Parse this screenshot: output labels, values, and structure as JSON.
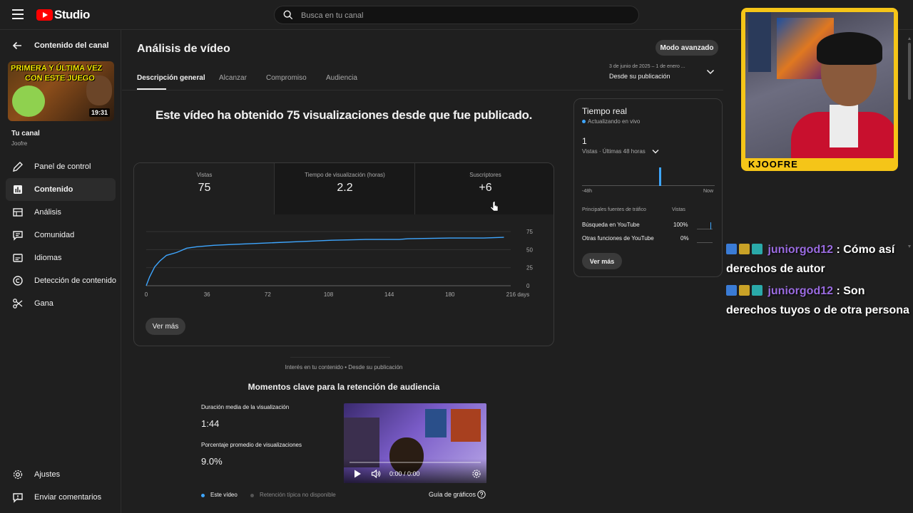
{
  "header": {
    "logo_text": "Studio",
    "search_placeholder": "Busca en tu canal"
  },
  "sidebar": {
    "back_label": "Contenido del canal",
    "thumbnail": {
      "line1": "PRIMERA Y ÚLTIMA VEZ",
      "line2": "CON ESTE JUEGO",
      "duration": "19:31"
    },
    "channel_title": "Tu canal",
    "channel_name": "Joofre",
    "items": [
      {
        "label": "Panel de control",
        "icon": "pencil-icon"
      },
      {
        "label": "Contenido",
        "icon": "content-icon"
      },
      {
        "label": "Análisis",
        "icon": "analytics-icon"
      },
      {
        "label": "Comunidad",
        "icon": "community-icon"
      },
      {
        "label": "Idiomas",
        "icon": "subtitles-icon"
      },
      {
        "label": "Detección de contenido",
        "icon": "copyright-icon"
      },
      {
        "label": "Gana",
        "icon": "scissors-icon"
      }
    ],
    "bottom_items": [
      {
        "label": "Ajustes",
        "icon": "gear-icon"
      },
      {
        "label": "Enviar comentarios",
        "icon": "feedback-icon"
      }
    ]
  },
  "main": {
    "title": "Análisis de vídeo",
    "advanced_button": "Modo avanzado",
    "tabs": [
      {
        "label": "Descripción general",
        "active": true
      },
      {
        "label": "Alcanzar",
        "active": false
      },
      {
        "label": "Compromiso",
        "active": false
      },
      {
        "label": "Audiencia",
        "active": false
      }
    ],
    "date_range": {
      "sub": "3 de junio de 2025 – 1 de enero ...",
      "main": "Desde su publicación"
    },
    "headline": "Este vídeo ha obtenido 75 visualizaciones desde que fue publicado.",
    "metrics": [
      {
        "label": "Vistas",
        "value": "75"
      },
      {
        "label": "Tiempo de visualización (horas)",
        "value": "2.2"
      },
      {
        "label": "Suscriptores",
        "value": "+6"
      }
    ],
    "see_more": "Ver más",
    "section_caption": "Interés en tu contenido • Desde su publicación",
    "section_title": "Momentos clave para la retención de audiencia",
    "avg_duration_label": "Duración media de la visualización",
    "avg_duration_value": "1:44",
    "avg_percent_label": "Porcentaje promedio de visualizaciones",
    "avg_percent_value": "9.0%",
    "video_time": "0:00 / 0:00",
    "legend": {
      "this_video": "Este vídeo",
      "typical": "Retención típica no disponible"
    },
    "guide_label": "Guía de gráficos"
  },
  "chart_data": {
    "type": "line",
    "x_ticks": [
      "0",
      "36",
      "72",
      "108",
      "144",
      "180",
      "216 days"
    ],
    "y_ticks": [
      "0",
      "25",
      "50",
      "75"
    ],
    "ylim": [
      0,
      75
    ],
    "xlim": [
      0,
      216
    ],
    "color": "#3ea6ff",
    "x": [
      0,
      2,
      5,
      8,
      12,
      18,
      24,
      30,
      40,
      50,
      60,
      70,
      90,
      100,
      110,
      130,
      150,
      155,
      180,
      200,
      212
    ],
    "values": [
      0,
      12,
      26,
      34,
      42,
      46,
      52,
      54,
      56,
      57,
      58,
      59,
      61,
      62,
      63,
      64,
      64,
      65,
      66,
      66,
      67
    ]
  },
  "realtime": {
    "title": "Tiempo real",
    "live": "Actualizando en vivo",
    "value": "1",
    "sub": "Vistas · Últimas 48 horas",
    "axis_left": "-48h",
    "axis_right": "Now",
    "table_header_source": "Principales fuentes de tráfico",
    "table_header_views": "Vistas",
    "rows": [
      {
        "label": "Búsqueda en YouTube",
        "value": "100%"
      },
      {
        "label": "Otras funciones de YouTube",
        "value": "0%"
      }
    ],
    "see_more": "Ver más",
    "accent": "#3ea6ff"
  },
  "stream": {
    "cam_label": "KJOOFRE",
    "chat": [
      {
        "user": "juniorgod12",
        "message": "Cómo así derechos de autor"
      },
      {
        "user": "juniorgod12",
        "message": "Son derechos tuyos o de otra persona"
      }
    ]
  }
}
